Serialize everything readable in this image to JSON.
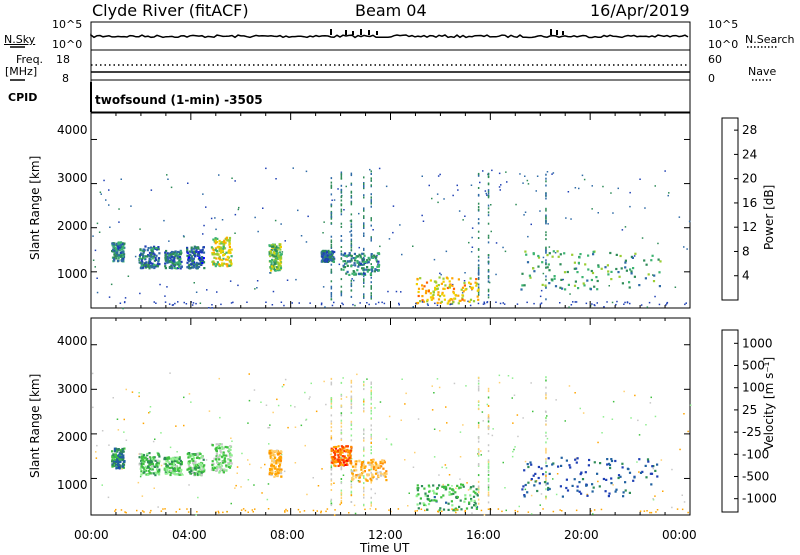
{
  "header": {
    "station": "Clyde River (fitACF)",
    "beam": "Beam 04",
    "date": "16/Apr/2019"
  },
  "top_panel": {
    "left_label": "N.Sky",
    "right_label": "N.Search",
    "left_ticks": [
      "10^5",
      "10^0"
    ],
    "right_ticks": [
      "10^5",
      "10^0"
    ]
  },
  "freq_panel": {
    "left_label_1": "Freq.",
    "left_label_2": "[MHz]",
    "right_label": "Nave",
    "left_ticks": [
      "18",
      "8"
    ],
    "right_ticks": [
      "60",
      "0"
    ]
  },
  "cpid": {
    "label": "CPID",
    "text": "twofsound (1-min) -3505"
  },
  "colors": {
    "power": [
      "#0000ff",
      "#1e3fb4",
      "#2e6aa6",
      "#2e8b57",
      "#3cb371",
      "#9acd32",
      "#f0d000",
      "#ffa500",
      "#ff6000",
      "#ff0000"
    ],
    "velocity": [
      "#ff0000",
      "#ff4000",
      "#ff8c00",
      "#ffa500",
      "#ffd070",
      "#c8c8c8",
      "#90ee90",
      "#40c040",
      "#2e8b57",
      "#2060a0",
      "#1e3fb4"
    ]
  },
  "chart_data": [
    {
      "type": "heatmap",
      "title": "",
      "xlabel": "Time UT",
      "ylabel": "Slant Range [km]",
      "xticks": [
        "00:00",
        "04:00",
        "08:00",
        "12:00",
        "16:00",
        "20:00",
        "00:00"
      ],
      "yticks": [
        1000,
        2000,
        3000,
        4000
      ],
      "xlim_hours": [
        0,
        24
      ],
      "ylim_km": [
        180,
        4600
      ],
      "colorbar": {
        "label": "Power [dB]",
        "ticks": [
          "4",
          "8",
          "12",
          "16",
          "20",
          "24",
          "28"
        ],
        "range": [
          0,
          30
        ]
      },
      "patches": [
        {
          "t0": 0.8,
          "t1": 1.3,
          "r0": 1250,
          "r1": 1700,
          "v": 10
        },
        {
          "t0": 1.9,
          "t1": 2.7,
          "r0": 1100,
          "r1": 1600,
          "v": 8
        },
        {
          "t0": 2.9,
          "t1": 3.6,
          "r0": 1100,
          "r1": 1500,
          "v": 9
        },
        {
          "t0": 3.8,
          "t1": 4.5,
          "r0": 1100,
          "r1": 1600,
          "v": 7
        },
        {
          "t0": 4.8,
          "t1": 5.6,
          "r0": 1150,
          "r1": 1800,
          "v": 18
        },
        {
          "t0": 7.1,
          "t1": 7.6,
          "r0": 1050,
          "r1": 1650,
          "v": 14
        },
        {
          "t0": 9.2,
          "t1": 9.7,
          "r0": 1250,
          "r1": 1500,
          "v": 8
        },
        {
          "t0": 10.0,
          "t1": 11.5,
          "r0": 950,
          "r1": 1450,
          "v": 10
        },
        {
          "t0": 13.0,
          "t1": 15.5,
          "r0": 300,
          "r1": 900,
          "v": 20
        },
        {
          "t0": 17.2,
          "t1": 22.8,
          "r0": 600,
          "r1": 1500,
          "v": 12
        }
      ]
    },
    {
      "type": "heatmap",
      "title": "",
      "xlabel": "Time UT",
      "ylabel": "Slant Range [km]",
      "xticks": [
        "00:00",
        "04:00",
        "08:00",
        "12:00",
        "16:00",
        "20:00",
        "00:00"
      ],
      "yticks": [
        1000,
        2000,
        3000,
        4000
      ],
      "xlim_hours": [
        0,
        24
      ],
      "ylim_km": [
        180,
        4600
      ],
      "colorbar": {
        "label": "Velocity [m s⁻¹]",
        "ticks": [
          "1000",
          "500",
          "100",
          "25",
          "-25",
          "-100",
          "-500",
          "-1000"
        ],
        "range": [
          -1000,
          1000
        ]
      },
      "patches": [
        {
          "t0": 0.8,
          "t1": 1.3,
          "r0": 1250,
          "r1": 1700,
          "v": 600
        },
        {
          "t0": 1.9,
          "t1": 2.7,
          "r0": 1100,
          "r1": 1600,
          "v": 300
        },
        {
          "t0": 2.9,
          "t1": 3.6,
          "r0": 1100,
          "r1": 1500,
          "v": 300
        },
        {
          "t0": 3.8,
          "t1": 4.5,
          "r0": 1100,
          "r1": 1600,
          "v": 300
        },
        {
          "t0": 4.8,
          "t1": 5.6,
          "r0": 1150,
          "r1": 1800,
          "v": 200
        },
        {
          "t0": 7.1,
          "t1": 7.6,
          "r0": 1050,
          "r1": 1650,
          "v": -300
        },
        {
          "t0": 9.6,
          "t1": 10.4,
          "r0": 1300,
          "r1": 1750,
          "v": -600
        },
        {
          "t0": 10.4,
          "t1": 11.8,
          "r0": 950,
          "r1": 1450,
          "v": -300
        },
        {
          "t0": 13.0,
          "t1": 15.5,
          "r0": 300,
          "r1": 900,
          "v": 400
        },
        {
          "t0": 17.2,
          "t1": 22.8,
          "r0": 600,
          "r1": 1500,
          "v": 800
        }
      ]
    }
  ]
}
